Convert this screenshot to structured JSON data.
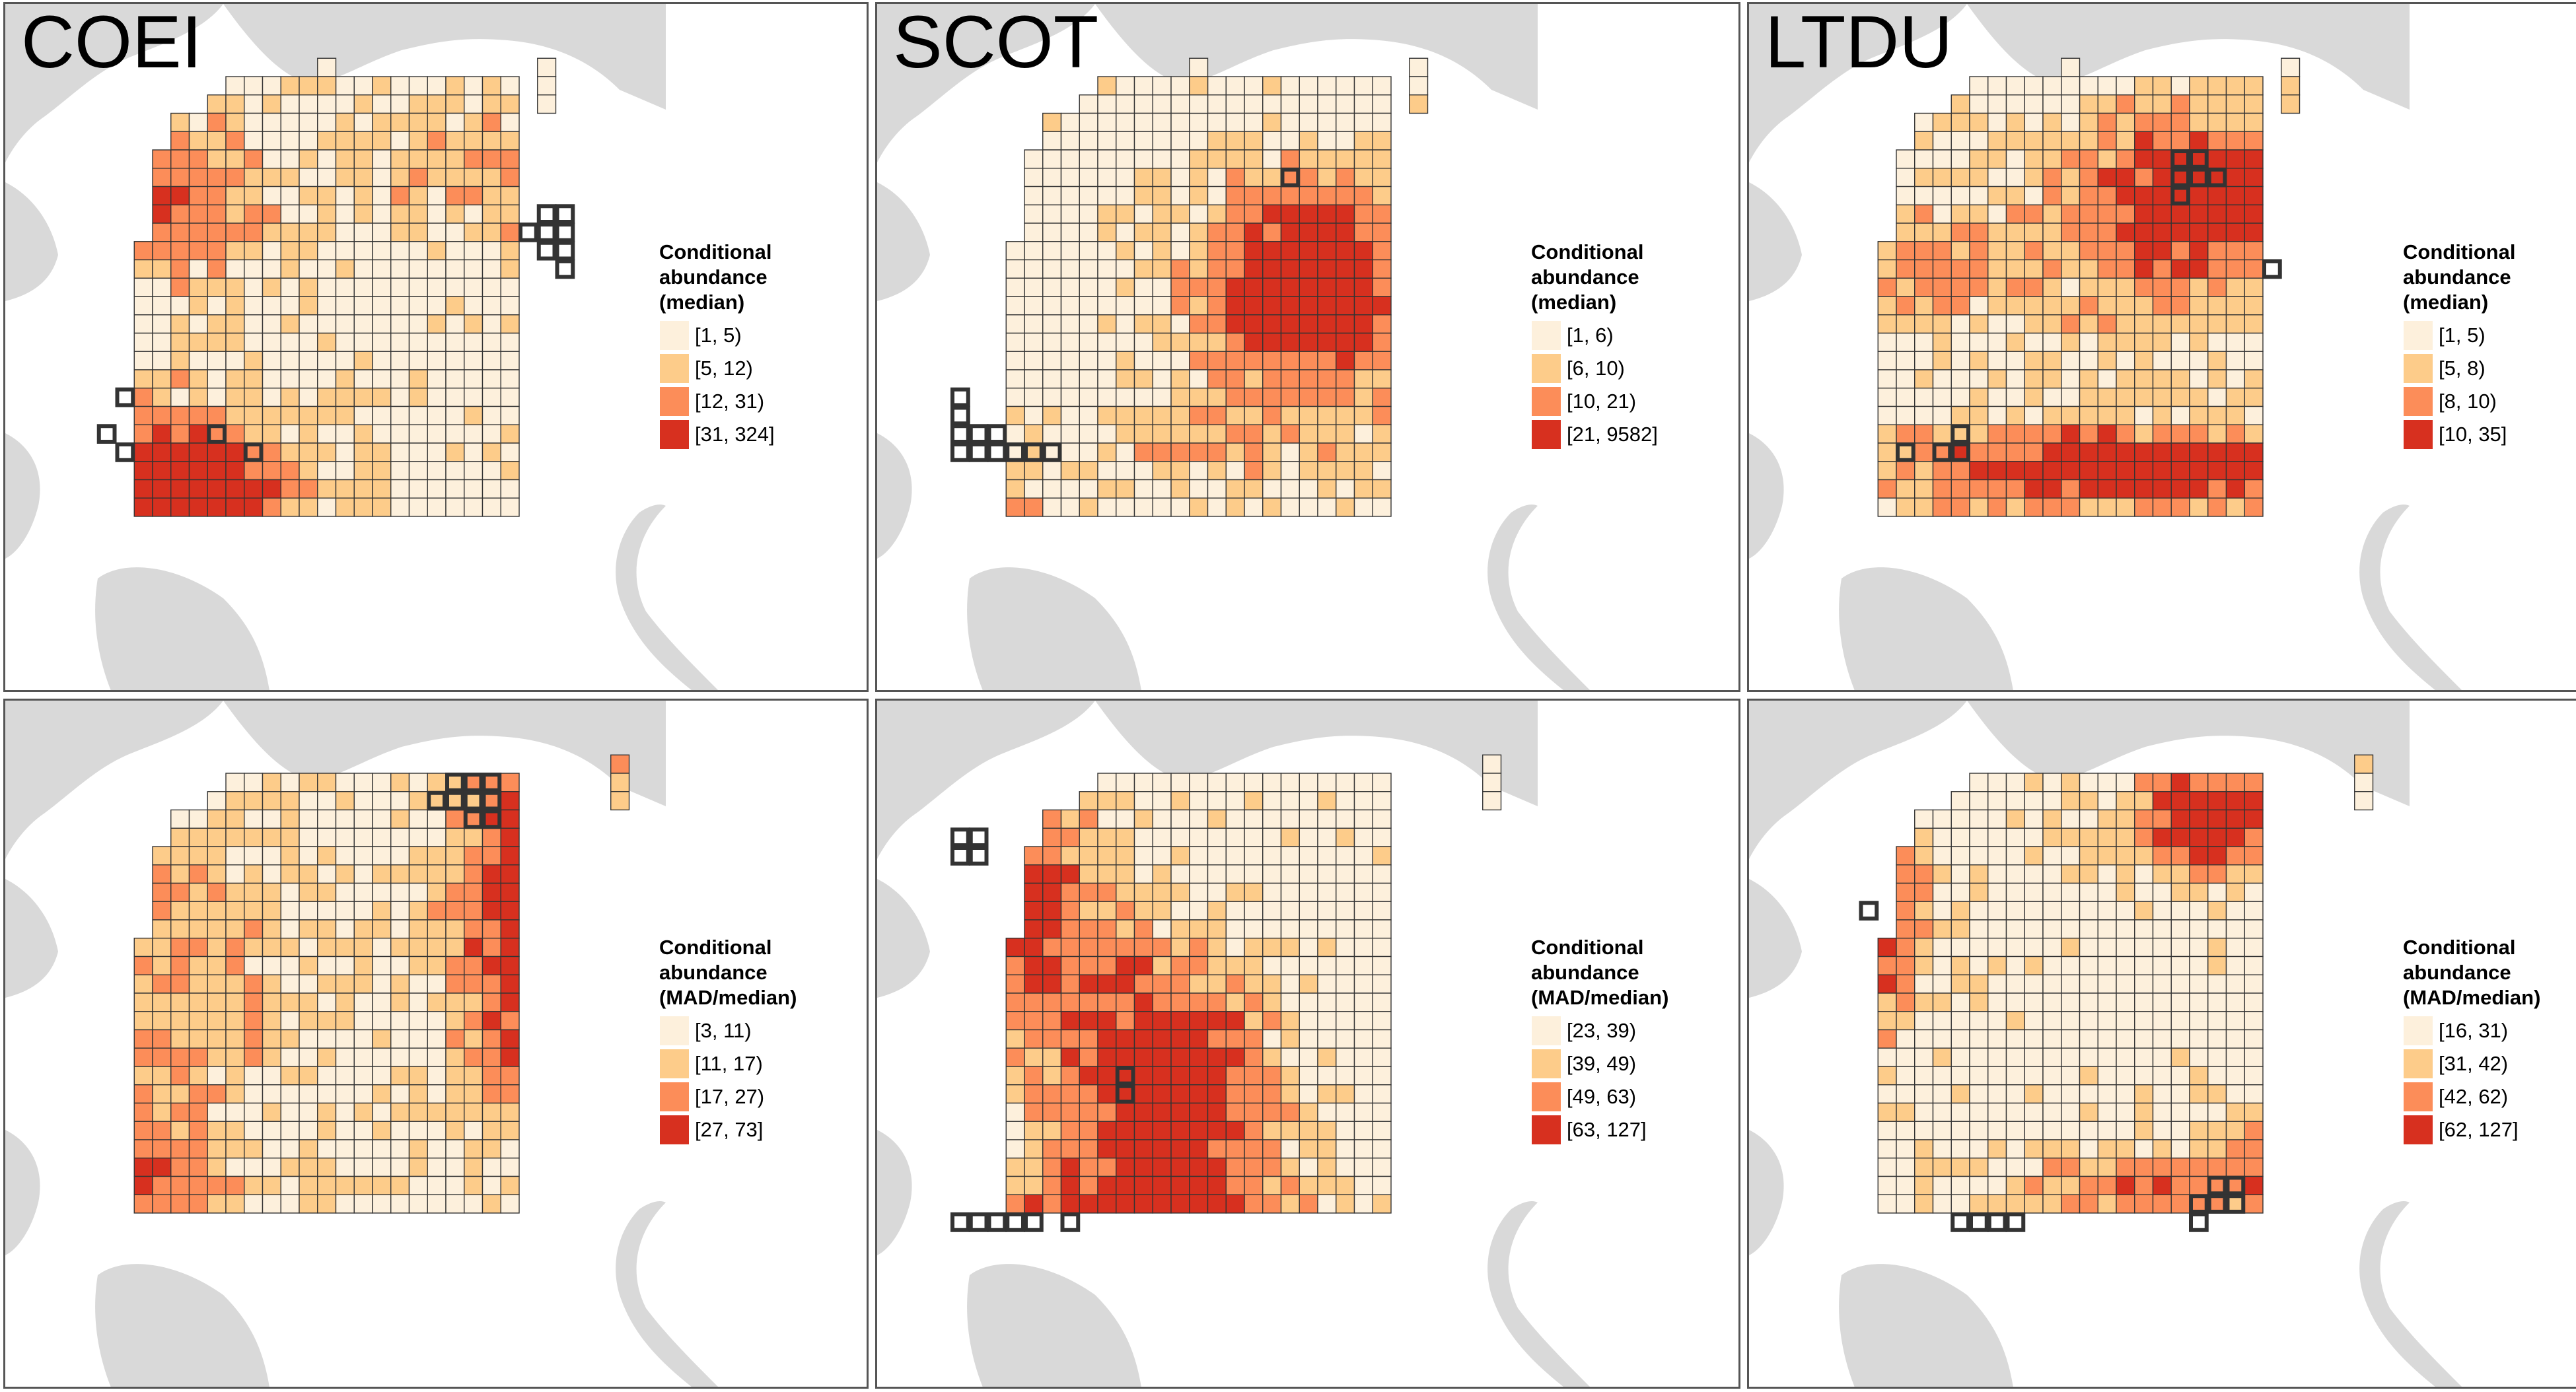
{
  "figure": {
    "colors": {
      "low": "#fdf0dc",
      "mid_low": "#fdcc8a",
      "mid_high": "#fc8d59",
      "high": "#d7301f",
      "land": "#d9d9d9",
      "grid_line": "#333333",
      "highlight_outline": "#333333"
    },
    "panels": [
      {
        "id": "coei-median",
        "title": "COEI",
        "pattern": "coei_median",
        "legend": {
          "title_lines": [
            "Conditional",
            "abundance",
            "(median)"
          ],
          "bins": [
            "[1, 5)",
            "[5, 12)",
            "[12, 31)",
            "[31, 324]"
          ]
        }
      },
      {
        "id": "scot-median",
        "title": "SCOT",
        "pattern": "scot_median",
        "legend": {
          "title_lines": [
            "Conditional",
            "abundance",
            "(median)"
          ],
          "bins": [
            "[1, 6)",
            "[6, 10)",
            "[10, 21)",
            "[21, 9582]"
          ]
        }
      },
      {
        "id": "ltdu-median",
        "title": "LTDU",
        "pattern": "ltdu_median",
        "legend": {
          "title_lines": [
            "Conditional",
            "abundance",
            "(median)"
          ],
          "bins": [
            "[1, 5)",
            "[5, 8)",
            "[8, 10)",
            "[10, 35]"
          ]
        }
      },
      {
        "id": "coei-mad",
        "title": "",
        "pattern": "coei_mad",
        "legend": {
          "title_lines": [
            "Conditional",
            "abundance",
            "(MAD/median)"
          ],
          "bins": [
            "[3, 11)",
            "[11, 17)",
            "[17, 27)",
            "[27, 73]"
          ]
        }
      },
      {
        "id": "scot-mad",
        "title": "",
        "pattern": "scot_mad",
        "legend": {
          "title_lines": [
            "Conditional",
            "abundance",
            "(MAD/median)"
          ],
          "bins": [
            "[23, 39)",
            "[39, 49)",
            "[49, 63)",
            "[63, 127]"
          ]
        }
      },
      {
        "id": "ltdu-mad",
        "title": "",
        "pattern": "ltdu_mad",
        "legend": {
          "title_lines": [
            "Conditional",
            "abundance",
            "(MAD/median)"
          ],
          "bins": [
            "[16, 31)",
            "[31, 42)",
            "[42, 62)",
            "[62, 127]"
          ]
        }
      }
    ]
  }
}
